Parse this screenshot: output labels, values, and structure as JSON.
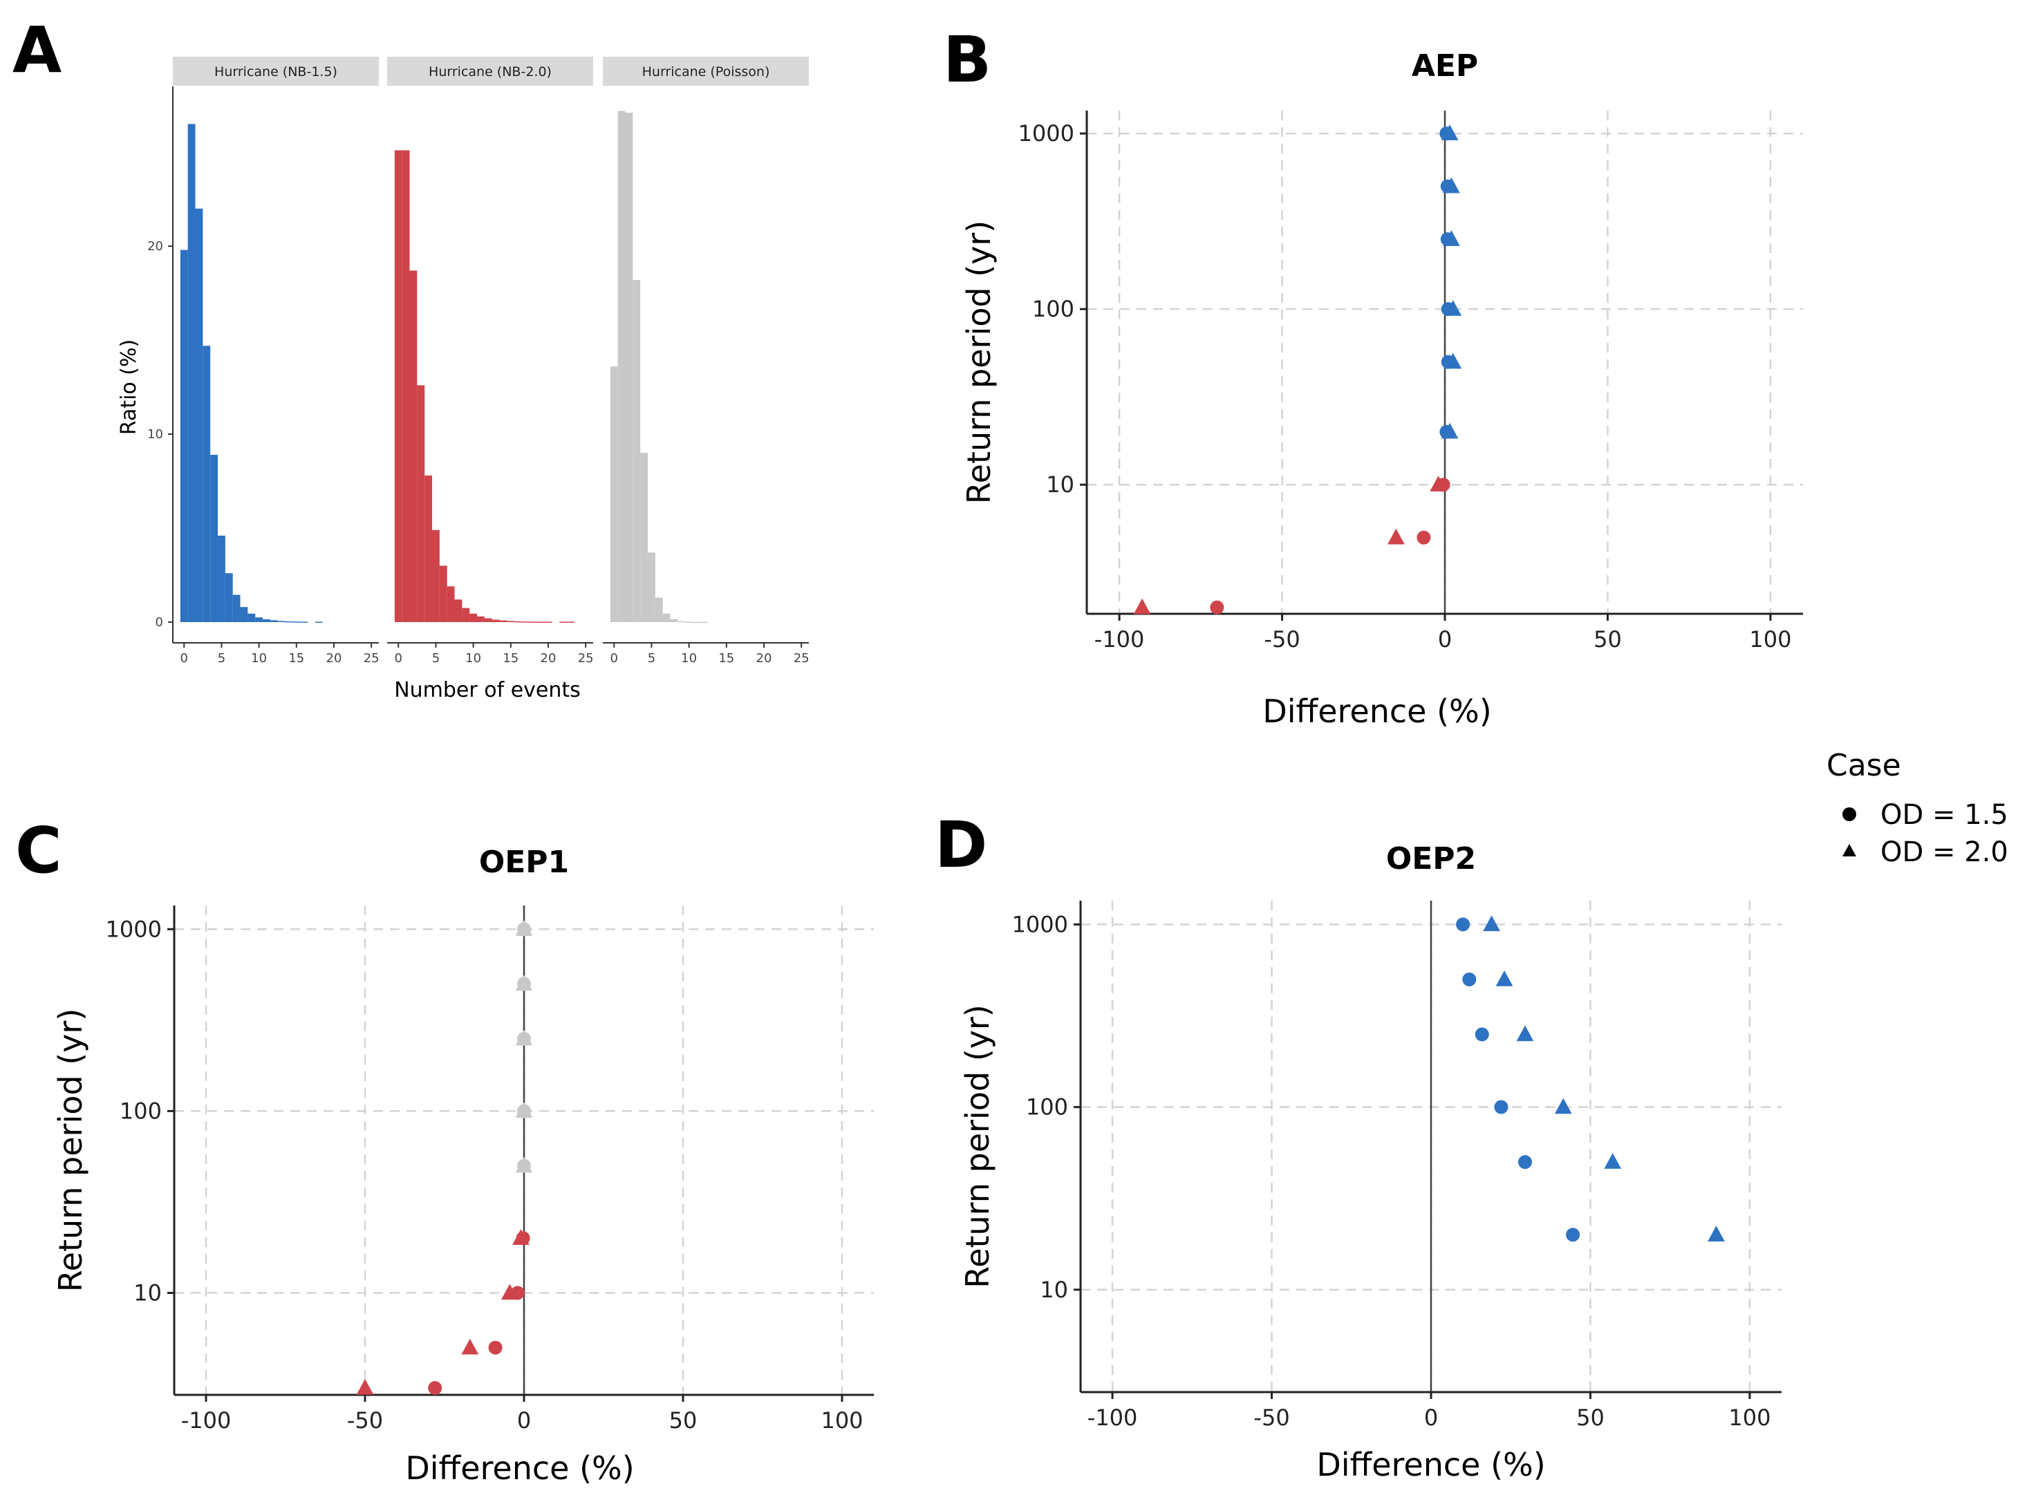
{
  "colors": {
    "blue": "#2e72c2",
    "red": "#cf434a",
    "gray": "#c8c8c8",
    "strip": "#d9d9d9",
    "grid": "#d3d3d3"
  },
  "panel_labels": {
    "A": "A",
    "B": "B",
    "C": "C",
    "D": "D"
  },
  "legend": {
    "title": "Case",
    "items": [
      {
        "label": "OD = 1.5",
        "shape": "circle"
      },
      {
        "label": "OD = 2.0",
        "shape": "triangle"
      }
    ]
  },
  "chart_data": [
    {
      "id": "A",
      "type": "bar",
      "title": "",
      "xlabel": "Number of events",
      "ylabel": "Ratio (%)",
      "xlim": [
        -1.5,
        26
      ],
      "ylim": [
        0,
        28.5
      ],
      "xticks": [
        0,
        5,
        10,
        15,
        20,
        25
      ],
      "yticks": [
        0,
        10,
        20
      ],
      "facets": [
        {
          "name": "Hurricane (NB-1.5)",
          "color": "blue",
          "x": [
            0,
            1,
            2,
            3,
            4,
            5,
            6,
            7,
            8,
            9,
            10,
            11,
            12,
            13,
            14,
            15,
            16,
            17,
            18
          ],
          "values": [
            19.8,
            26.5,
            22.0,
            14.7,
            8.9,
            4.6,
            2.6,
            1.45,
            0.8,
            0.45,
            0.25,
            0.15,
            0.1,
            0.06,
            0.04,
            0.03,
            0.02,
            0,
            0.02
          ]
        },
        {
          "name": "Hurricane (NB-2.0)",
          "color": "red",
          "x": [
            0,
            1,
            2,
            3,
            4,
            5,
            6,
            7,
            8,
            9,
            10,
            11,
            12,
            13,
            14,
            15,
            16,
            17,
            18,
            19,
            20,
            21,
            22,
            23
          ],
          "values": [
            25.1,
            25.1,
            18.7,
            12.6,
            7.8,
            4.9,
            3.0,
            1.9,
            1.2,
            0.75,
            0.45,
            0.3,
            0.2,
            0.13,
            0.09,
            0.06,
            0.04,
            0.03,
            0.02,
            0.02,
            0.02,
            0,
            0.02,
            0.02
          ]
        },
        {
          "name": "Hurricane (Poisson)",
          "color": "gray",
          "x": [
            0,
            1,
            2,
            3,
            4,
            5,
            6,
            7,
            8,
            9,
            10,
            11,
            12
          ],
          "values": [
            13.6,
            27.2,
            27.1,
            18.2,
            9.0,
            3.7,
            1.3,
            0.45,
            0.15,
            0.05,
            0.02,
            0.01,
            0.01
          ]
        }
      ]
    },
    {
      "id": "B",
      "type": "scatter",
      "title": "AEP",
      "xlabel": "Difference (%)",
      "ylabel": "Return period (yr)",
      "xlim": [
        -110,
        110
      ],
      "ylim": [
        1.84,
        1350
      ],
      "yscale": "log",
      "xticks": [
        -100,
        -50,
        0,
        50,
        100
      ],
      "yticks": [
        10,
        100,
        1000
      ],
      "series": [
        {
          "name": "OD = 1.5",
          "shape": "circle",
          "points": [
            {
              "x": -70,
              "y": 2,
              "color": "red"
            },
            {
              "x": -6.5,
              "y": 5,
              "color": "red"
            },
            {
              "x": -0.5,
              "y": 10,
              "color": "red"
            },
            {
              "x": 0.5,
              "y": 20,
              "color": "blue"
            },
            {
              "x": 1,
              "y": 50,
              "color": "blue"
            },
            {
              "x": 1,
              "y": 100,
              "color": "blue"
            },
            {
              "x": 0.8,
              "y": 250,
              "color": "blue"
            },
            {
              "x": 0.8,
              "y": 500,
              "color": "blue"
            },
            {
              "x": 0.5,
              "y": 1000,
              "color": "blue"
            }
          ]
        },
        {
          "name": "OD = 2.0",
          "shape": "triangle",
          "points": [
            {
              "x": -93,
              "y": 2,
              "color": "red"
            },
            {
              "x": -15,
              "y": 5,
              "color": "red"
            },
            {
              "x": -2,
              "y": 10,
              "color": "red"
            },
            {
              "x": 1.5,
              "y": 20,
              "color": "blue"
            },
            {
              "x": 2.5,
              "y": 50,
              "color": "blue"
            },
            {
              "x": 2.5,
              "y": 100,
              "color": "blue"
            },
            {
              "x": 2,
              "y": 250,
              "color": "blue"
            },
            {
              "x": 2,
              "y": 500,
              "color": "blue"
            },
            {
              "x": 1.5,
              "y": 1000,
              "color": "blue"
            }
          ]
        }
      ]
    },
    {
      "id": "C",
      "type": "scatter",
      "title": "OEP1",
      "xlabel": "Difference (%)",
      "ylabel": "Return period (yr)",
      "xlim": [
        -110,
        110
      ],
      "ylim": [
        2.75,
        1350
      ],
      "yscale": "log",
      "xticks": [
        -100,
        -50,
        0,
        50,
        100
      ],
      "yticks": [
        10,
        100,
        1000
      ],
      "series": [
        {
          "name": "OD = 1.5",
          "shape": "circle",
          "points": [
            {
              "x": -28,
              "y": 3,
              "color": "red"
            },
            {
              "x": -9,
              "y": 5,
              "color": "red"
            },
            {
              "x": -2,
              "y": 10,
              "color": "red"
            },
            {
              "x": -0.3,
              "y": 20,
              "color": "red"
            },
            {
              "x": 0,
              "y": 50,
              "color": "gray"
            },
            {
              "x": 0,
              "y": 100,
              "color": "gray"
            },
            {
              "x": 0,
              "y": 250,
              "color": "gray"
            },
            {
              "x": 0,
              "y": 500,
              "color": "gray"
            },
            {
              "x": 0,
              "y": 1000,
              "color": "gray"
            }
          ]
        },
        {
          "name": "OD = 2.0",
          "shape": "triangle",
          "points": [
            {
              "x": -50,
              "y": 3,
              "color": "red"
            },
            {
              "x": -17,
              "y": 5,
              "color": "red"
            },
            {
              "x": -4.5,
              "y": 10,
              "color": "red"
            },
            {
              "x": -1,
              "y": 20,
              "color": "red"
            },
            {
              "x": 0,
              "y": 50,
              "color": "gray"
            },
            {
              "x": 0,
              "y": 100,
              "color": "gray"
            },
            {
              "x": 0,
              "y": 250,
              "color": "gray"
            },
            {
              "x": 0,
              "y": 500,
              "color": "gray"
            },
            {
              "x": 0,
              "y": 1000,
              "color": "gray"
            }
          ]
        }
      ]
    },
    {
      "id": "D",
      "type": "scatter",
      "title": "OEP2",
      "xlabel": "Difference (%)",
      "ylabel": "Return period (yr)",
      "xlim": [
        -110,
        110
      ],
      "ylim": [
        2.75,
        1350
      ],
      "yscale": "log",
      "xticks": [
        -100,
        -50,
        0,
        50,
        100
      ],
      "yticks": [
        10,
        100,
        1000
      ],
      "series": [
        {
          "name": "OD = 1.5",
          "shape": "circle",
          "points": [
            {
              "x": 44.5,
              "y": 20,
              "color": "blue"
            },
            {
              "x": 29.5,
              "y": 50,
              "color": "blue"
            },
            {
              "x": 22,
              "y": 100,
              "color": "blue"
            },
            {
              "x": 16,
              "y": 250,
              "color": "blue"
            },
            {
              "x": 12,
              "y": 500,
              "color": "blue"
            },
            {
              "x": 10,
              "y": 1000,
              "color": "blue"
            }
          ]
        },
        {
          "name": "OD = 2.0",
          "shape": "triangle",
          "points": [
            {
              "x": 89.5,
              "y": 20,
              "color": "blue"
            },
            {
              "x": 57,
              "y": 50,
              "color": "blue"
            },
            {
              "x": 41.5,
              "y": 100,
              "color": "blue"
            },
            {
              "x": 29.5,
              "y": 250,
              "color": "blue"
            },
            {
              "x": 23,
              "y": 500,
              "color": "blue"
            },
            {
              "x": 19,
              "y": 1000,
              "color": "blue"
            }
          ]
        }
      ]
    }
  ]
}
